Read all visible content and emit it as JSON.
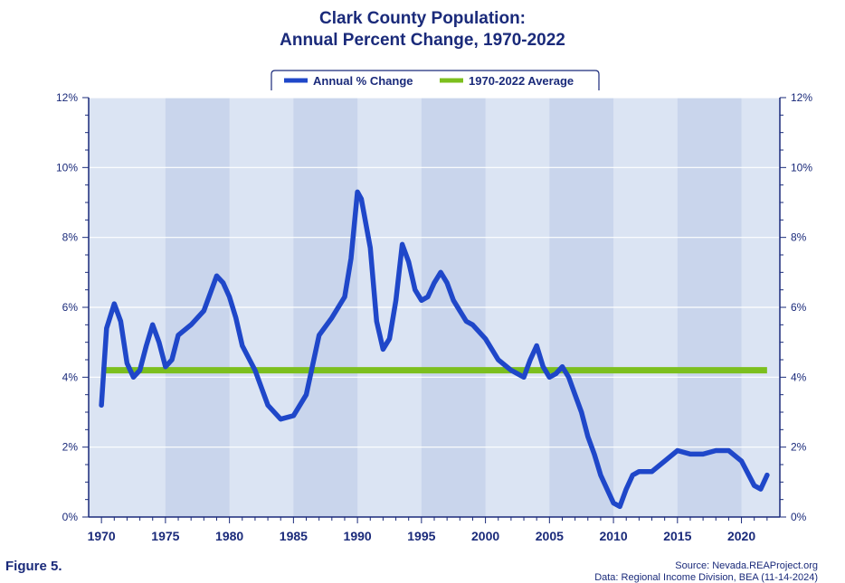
{
  "header": {
    "title_line1": "Clark County Population:",
    "title_line2": "Annual Percent Change, 1970-2022"
  },
  "footer": {
    "figure_label": "Figure 5.",
    "source_line1": "Source: Nevada.REAProject.org",
    "source_line2": "Data: Regional Income Division, BEA (11-14-2024)"
  },
  "colors": {
    "plot_background": "#dbe4f3",
    "band_background": "#c9d5ec",
    "annual_series": "#1f47c9",
    "average_series": "#7cbf1e",
    "axis": "#1a2a7a"
  },
  "chart_data": {
    "type": "line",
    "title": "Clark County Population: Annual Percent Change, 1970-2022",
    "xlim": [
      1969,
      2023
    ],
    "ylim": [
      0,
      12
    ],
    "y_ticks": [
      0,
      2,
      4,
      6,
      8,
      10,
      12
    ],
    "y_tick_labels": [
      "0%",
      "2%",
      "4%",
      "6%",
      "8%",
      "10%",
      "12%"
    ],
    "x_ticks": [
      1970,
      1975,
      1980,
      1985,
      1990,
      1995,
      2000,
      2005,
      2010,
      2015,
      2020
    ],
    "x_tick_labels": [
      "1970",
      "1975",
      "1980",
      "1985",
      "1990",
      "1995",
      "2000",
      "2005",
      "2010",
      "2015",
      "2020"
    ],
    "y_axis_both_sides": true,
    "grid": true,
    "legend_position": "top-center",
    "series": [
      {
        "name": "Annual % Change",
        "x": [
          1970,
          1970.4,
          1971,
          1971.5,
          1972,
          1972.5,
          1973,
          1973.5,
          1974,
          1974.5,
          1975,
          1975.5,
          1976,
          1977,
          1978,
          1979,
          1979.5,
          1980,
          1980.5,
          1981,
          1982,
          1983,
          1984,
          1985,
          1986,
          1987,
          1988,
          1989,
          1989.5,
          1990,
          1990.3,
          1991,
          1991.5,
          1992,
          1992.5,
          1993,
          1993.5,
          1994,
          1994.5,
          1995,
          1995.5,
          1996,
          1996.5,
          1997,
          1997.5,
          1998,
          1998.5,
          1999,
          2000,
          2001,
          2002,
          2003,
          2003.5,
          2004,
          2004.5,
          2005,
          2005.5,
          2006,
          2006.5,
          2007,
          2007.5,
          2008,
          2008.5,
          2009,
          2009.5,
          2010,
          2010.5,
          2011,
          2011.5,
          2012,
          2013,
          2014,
          2015,
          2016,
          2017,
          2018,
          2019,
          2020,
          2021,
          2021.5,
          2022
        ],
        "values": [
          3.2,
          5.4,
          6.1,
          5.6,
          4.4,
          4.0,
          4.2,
          4.9,
          5.5,
          5.0,
          4.3,
          4.5,
          5.2,
          5.5,
          5.9,
          6.9,
          6.7,
          6.3,
          5.7,
          4.9,
          4.2,
          3.2,
          2.8,
          2.9,
          3.5,
          5.2,
          5.7,
          6.3,
          7.4,
          9.3,
          9.1,
          7.7,
          5.6,
          4.8,
          5.1,
          6.2,
          7.8,
          7.3,
          6.5,
          6.2,
          6.3,
          6.7,
          7.0,
          6.7,
          6.2,
          5.9,
          5.6,
          5.5,
          5.1,
          4.5,
          4.2,
          4.0,
          4.5,
          4.9,
          4.3,
          4.0,
          4.1,
          4.3,
          4.0,
          3.5,
          3.0,
          2.3,
          1.8,
          1.2,
          0.8,
          0.4,
          0.3,
          0.8,
          1.2,
          1.3,
          1.3,
          1.6,
          1.9,
          1.8,
          1.8,
          1.9,
          1.9,
          1.6,
          0.9,
          0.8,
          1.2
        ]
      },
      {
        "name": "1970-2022 Average",
        "x": [
          1970,
          2022
        ],
        "values": [
          4.2,
          4.2
        ]
      }
    ]
  }
}
